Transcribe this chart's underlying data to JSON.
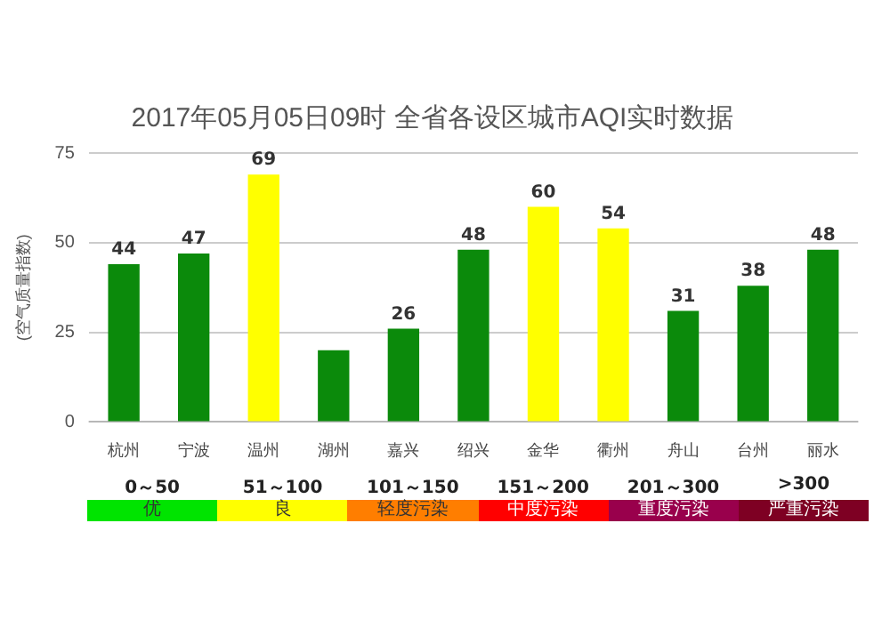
{
  "chart_data": {
    "type": "bar",
    "title": "2017年05月05日09时 全省各设区城市AQI实时数据",
    "ylabel": "(空气质量指数)",
    "categories": [
      "杭州",
      "宁波",
      "温州",
      "湖州",
      "嘉兴",
      "绍兴",
      "金华",
      "衢州",
      "舟山",
      "台州",
      "丽水"
    ],
    "values": [
      44,
      47,
      69,
      20,
      26,
      48,
      60,
      54,
      31,
      38,
      48
    ],
    "value_labels": [
      "44",
      "47",
      "69",
      null,
      "26",
      "48",
      "60",
      "54",
      "31",
      "38",
      "48"
    ],
    "colors": [
      "#0b8a0b",
      "#0b8a0b",
      "#ffff00",
      "#0b8a0b",
      "#0b8a0b",
      "#0b8a0b",
      "#ffff00",
      "#ffff00",
      "#0b8a0b",
      "#0b8a0b",
      "#0b8a0b"
    ],
    "ylim": [
      0,
      75
    ],
    "yticks": [
      0,
      25,
      50,
      75
    ],
    "grid": "y",
    "legend": false,
    "annotations": [
      "0～50",
      "51～100",
      "101～150",
      "151～200",
      "201～300",
      ">300",
      "优",
      "良",
      "轻度污染",
      "中度污染",
      "重度污染",
      "严重污染"
    ]
  }
}
